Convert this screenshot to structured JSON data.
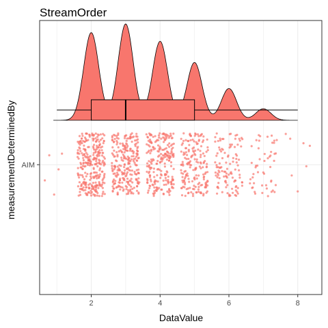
{
  "chart_data": {
    "type": "raincloud",
    "title": "StreamOrder",
    "xlabel": "DataValue",
    "ylabel": "measurementDeterminedBy",
    "categories": [
      "AIM"
    ],
    "xlim": [
      0.5,
      8.7
    ],
    "x_ticks": [
      2,
      4,
      6,
      8
    ],
    "grid": true,
    "legend": "none",
    "colors": {
      "fill": "#F8766D",
      "outline": "#000000",
      "grid": "#ebebeb"
    },
    "density": {
      "peaks": [
        {
          "x": 2,
          "height": 0.91
        },
        {
          "x": 3,
          "height": 1.0
        },
        {
          "x": 4,
          "height": 0.82
        },
        {
          "x": 5,
          "height": 0.6
        },
        {
          "x": 6,
          "height": 0.33
        },
        {
          "x": 7,
          "height": 0.12
        }
      ],
      "range": [
        0.9,
        8.0
      ]
    },
    "boxplot": {
      "min": 1,
      "q1": 2,
      "median": 3,
      "q3": 5,
      "max": 8
    },
    "jitter_groups": [
      {
        "x": 2,
        "count": 300
      },
      {
        "x": 3,
        "count": 260
      },
      {
        "x": 4,
        "count": 230
      },
      {
        "x": 5,
        "count": 180
      },
      {
        "x": 6,
        "count": 110
      },
      {
        "x": 7,
        "count": 50
      },
      {
        "x": 8,
        "count": 4
      }
    ],
    "outliers": [
      {
        "x": 0.65,
        "y": 0.5
      },
      {
        "x": 0.78,
        "y": -0.3
      },
      {
        "x": 0.92,
        "y": 0.95
      },
      {
        "x": 1.15,
        "y": -0.35
      },
      {
        "x": 1.05,
        "y": 0.15
      },
      {
        "x": 8.25,
        "y": 0.05
      },
      {
        "x": 8.35,
        "y": -0.6
      },
      {
        "x": 8.0,
        "y": 0.85
      }
    ]
  }
}
